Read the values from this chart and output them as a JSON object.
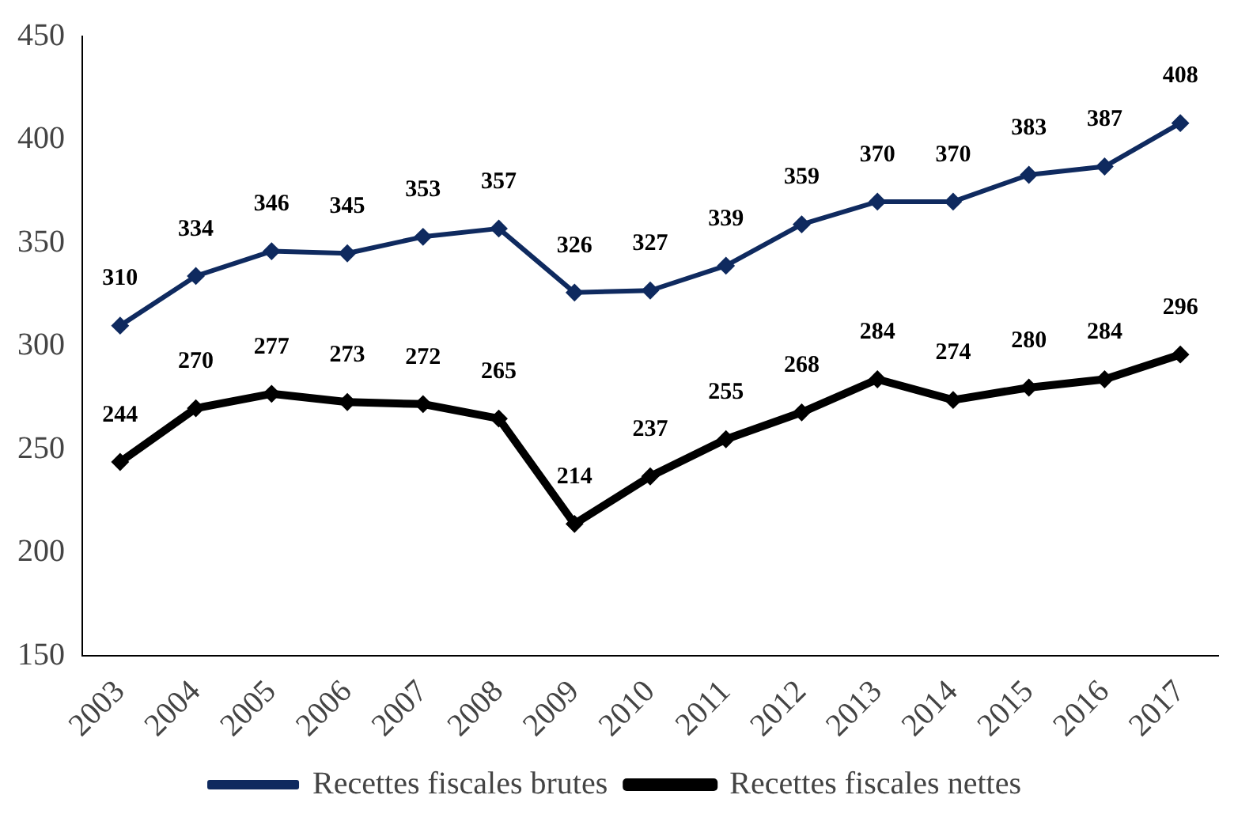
{
  "chart_data": {
    "type": "line",
    "categories": [
      "2003",
      "2004",
      "2005",
      "2006",
      "2007",
      "2008",
      "2009",
      "2010",
      "2011",
      "2012",
      "2013",
      "2014",
      "2015",
      "2016",
      "2017"
    ],
    "series": [
      {
        "name": "Recettes fiscales brutes",
        "color": "#0f2a5f",
        "values": [
          310,
          334,
          346,
          345,
          353,
          357,
          326,
          327,
          339,
          359,
          370,
          370,
          383,
          387,
          408
        ]
      },
      {
        "name": "Recettes fiscales nettes",
        "color": "#000000",
        "values": [
          244,
          270,
          277,
          273,
          272,
          265,
          214,
          237,
          255,
          268,
          284,
          274,
          280,
          284,
          296
        ]
      }
    ],
    "ylim": [
      150,
      450
    ],
    "yticks": [
      150,
      200,
      250,
      300,
      350,
      400,
      450
    ],
    "grid": false,
    "legend": "bottom",
    "marker": "diamond",
    "line_style": "solid",
    "data_labels": true
  }
}
